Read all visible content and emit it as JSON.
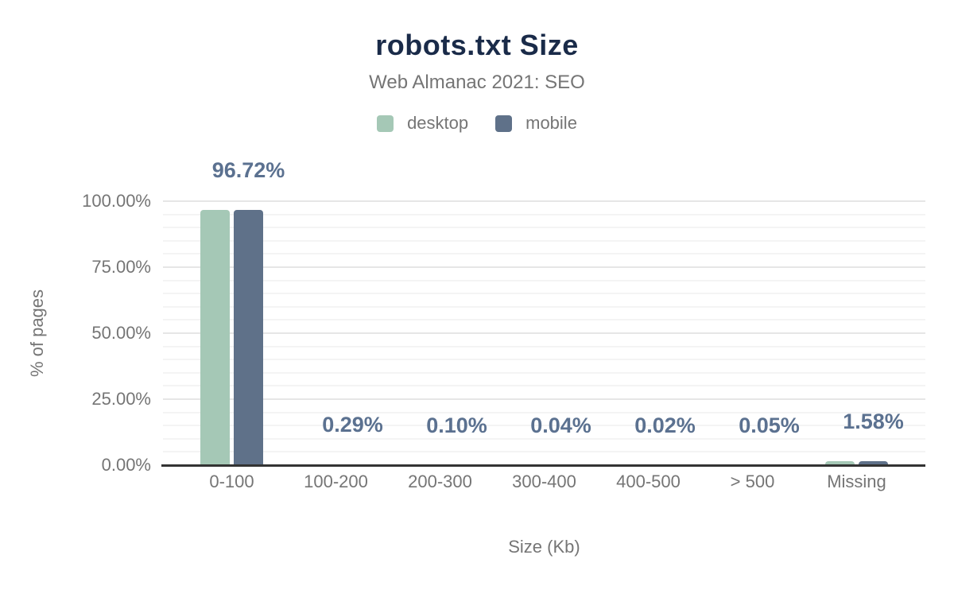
{
  "chart_data": {
    "type": "bar",
    "title": "robots.txt Size",
    "subtitle": "Web Almanac 2021: SEO",
    "categories": [
      "0-100",
      "100-200",
      "200-300",
      "300-400",
      "400-500",
      "> 500",
      "Missing"
    ],
    "series": [
      {
        "name": "desktop",
        "color": "#a5c8b6",
        "values": [
          96.72,
          0.29,
          0.1,
          0.04,
          0.02,
          0.05,
          1.58
        ]
      },
      {
        "name": "mobile",
        "color": "#5f7189",
        "values": [
          96.72,
          0.29,
          0.1,
          0.04,
          0.02,
          0.05,
          1.58
        ]
      }
    ],
    "data_labels": {
      "series": "mobile",
      "values": [
        "96.72%",
        "0.29%",
        "0.10%",
        "0.04%",
        "0.02%",
        "0.05%",
        "1.58%"
      ]
    },
    "xlabel": "Size (Kb)",
    "ylabel": "% of pages",
    "ylim": [
      0,
      100
    ],
    "yticks": [
      {
        "value": 0,
        "label": "0.00%"
      },
      {
        "value": 25,
        "label": "25.00%"
      },
      {
        "value": 50,
        "label": "50.00%"
      },
      {
        "value": 75,
        "label": "75.00%"
      },
      {
        "value": 100,
        "label": "100.00%"
      }
    ],
    "grid": {
      "major_interval": 25,
      "minor_interval": 5,
      "gridlines": "horizontal"
    },
    "legend_position": "top"
  },
  "colors": {
    "background": "#ffffff",
    "title": "#1a2b49",
    "subtitle": "#757575",
    "axis_text": "#757575",
    "data_label": "#5b7190",
    "axis_line": "#333333",
    "grid_major": "#e6e6e6",
    "grid_minor": "#f4f4f4"
  }
}
